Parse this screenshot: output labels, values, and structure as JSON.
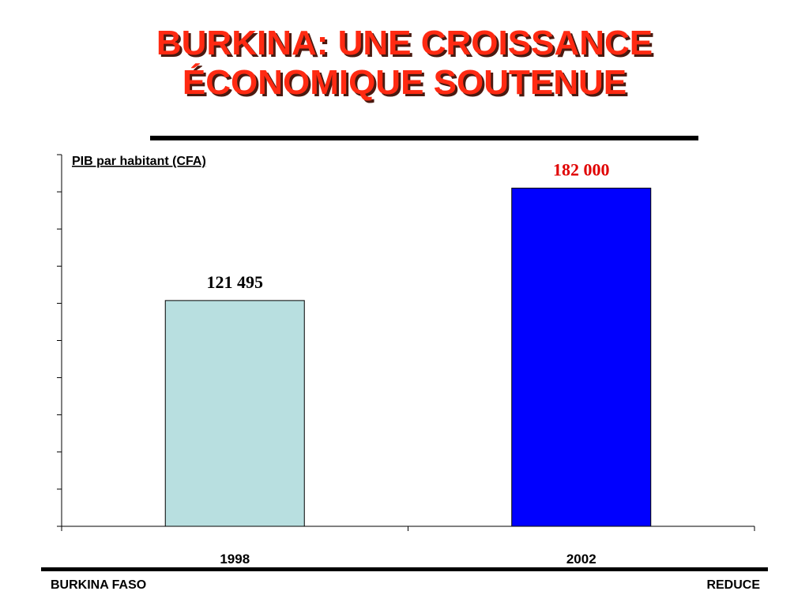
{
  "title_lines": [
    "BURKINA: UNE CROISSANCE",
    "ÉCONOMIQUE SOUTENUE"
  ],
  "footer": {
    "left": "BURKINA FASO",
    "right": "REDUCE"
  },
  "colors": {
    "title": "#ff2a12",
    "bar_1998": "#b8dfe0",
    "bar_2002": "#0000ff",
    "label_2002": "#e00000"
  },
  "chart_data": {
    "type": "bar",
    "title": "",
    "ylabel": "PIB par habitant (CFA)",
    "xlabel": "",
    "categories": [
      "1998",
      "2002"
    ],
    "values": [
      121495,
      182000
    ],
    "value_labels": [
      "121 495",
      "182 000"
    ],
    "bar_colors": [
      "#b8dfe0",
      "#0000ff"
    ],
    "value_label_colors": [
      "#000000",
      "#e00000"
    ],
    "ylim": [
      0,
      200000
    ],
    "yticks": [
      0,
      20000,
      40000,
      60000,
      80000,
      100000,
      120000,
      140000,
      160000,
      180000,
      200000
    ],
    "show_ytick_labels": false,
    "grid": false
  }
}
